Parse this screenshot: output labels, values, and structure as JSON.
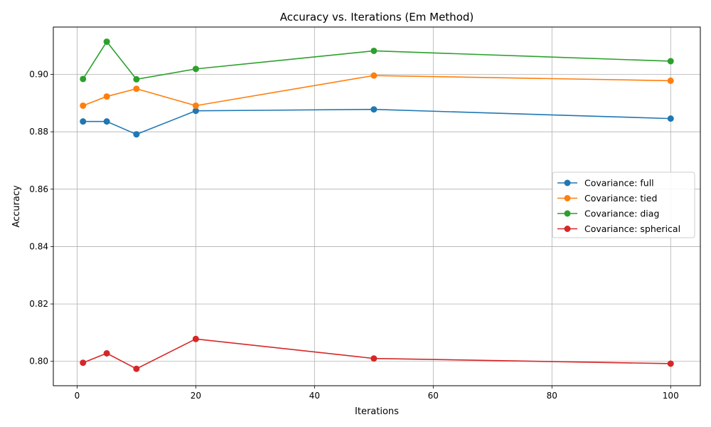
{
  "chart_data": {
    "type": "line",
    "title": "Accuracy vs. Iterations (Em Method)",
    "xlabel": "Iterations",
    "ylabel": "Accuracy",
    "xlim": [
      -4,
      105
    ],
    "ylim": [
      0.7915,
      0.9165
    ],
    "xticks": [
      0,
      20,
      40,
      60,
      80,
      100
    ],
    "yticks": [
      0.8,
      0.82,
      0.84,
      0.86,
      0.88,
      0.9
    ],
    "xtick_labels": [
      "0",
      "20",
      "40",
      "60",
      "80",
      "100"
    ],
    "ytick_labels": [
      "0.80",
      "0.82",
      "0.84",
      "0.86",
      "0.88",
      "0.90"
    ],
    "grid": true,
    "legend_position": "center-right",
    "x": [
      1,
      5,
      10,
      20,
      50,
      100
    ],
    "series": [
      {
        "name": "Covariance: full",
        "color": "#1f77b4",
        "values": [
          0.8836,
          0.8836,
          0.8791,
          0.8873,
          0.8878,
          0.8846
        ]
      },
      {
        "name": "Covariance: tied",
        "color": "#ff7f0e",
        "values": [
          0.8891,
          0.8923,
          0.895,
          0.8891,
          0.8996,
          0.8978
        ]
      },
      {
        "name": "Covariance: diag",
        "color": "#2ca02c",
        "values": [
          0.8984,
          0.9114,
          0.8983,
          0.9019,
          0.9082,
          0.9046
        ]
      },
      {
        "name": "Covariance: spherical",
        "color": "#d62728",
        "values": [
          0.7995,
          0.8028,
          0.7974,
          0.8078,
          0.801,
          0.7992
        ]
      }
    ]
  }
}
